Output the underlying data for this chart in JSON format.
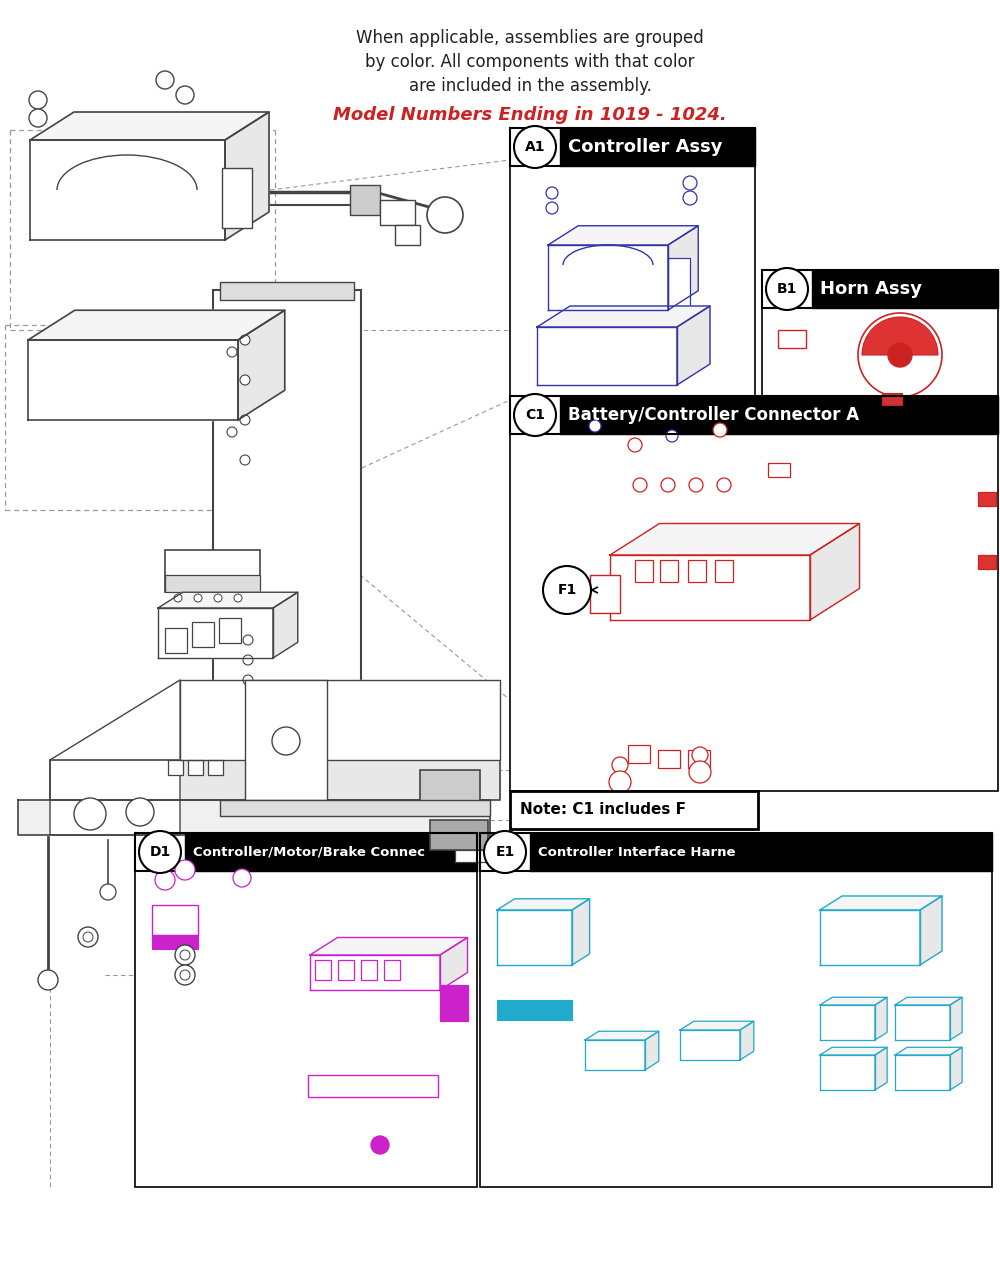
{
  "title_line1": "When applicable, assemblies are grouped",
  "title_line2": "by color. All components with that color",
  "title_line3": "are included in the assembly.",
  "title_red": "Model Numbers Ending in 1019 - 1024.",
  "panel_A1_label": "A1",
  "panel_A1_title": "Controller Assy",
  "panel_B1_label": "B1",
  "panel_B1_title": "Horn Assy",
  "panel_C1_label": "C1",
  "panel_C1_title": "Battery/Controller Connector A",
  "panel_F1_label": "F1",
  "panel_D1_label": "D1",
  "panel_D1_title": "Controller/Motor/Brake Connec",
  "panel_E1_label": "E1",
  "panel_E1_title": "Controller Interface Harne",
  "note_text": "Note: C1 includes F",
  "bg_color": "#ffffff",
  "black": "#000000",
  "red_color": "#cc2222",
  "blue_color": "#3333aa",
  "magenta_color": "#cc22cc",
  "cyan_color": "#22aacc",
  "gray_color": "#999999",
  "dark_gray": "#444444",
  "fig_w": 10.0,
  "fig_h": 12.67,
  "dpi": 100
}
